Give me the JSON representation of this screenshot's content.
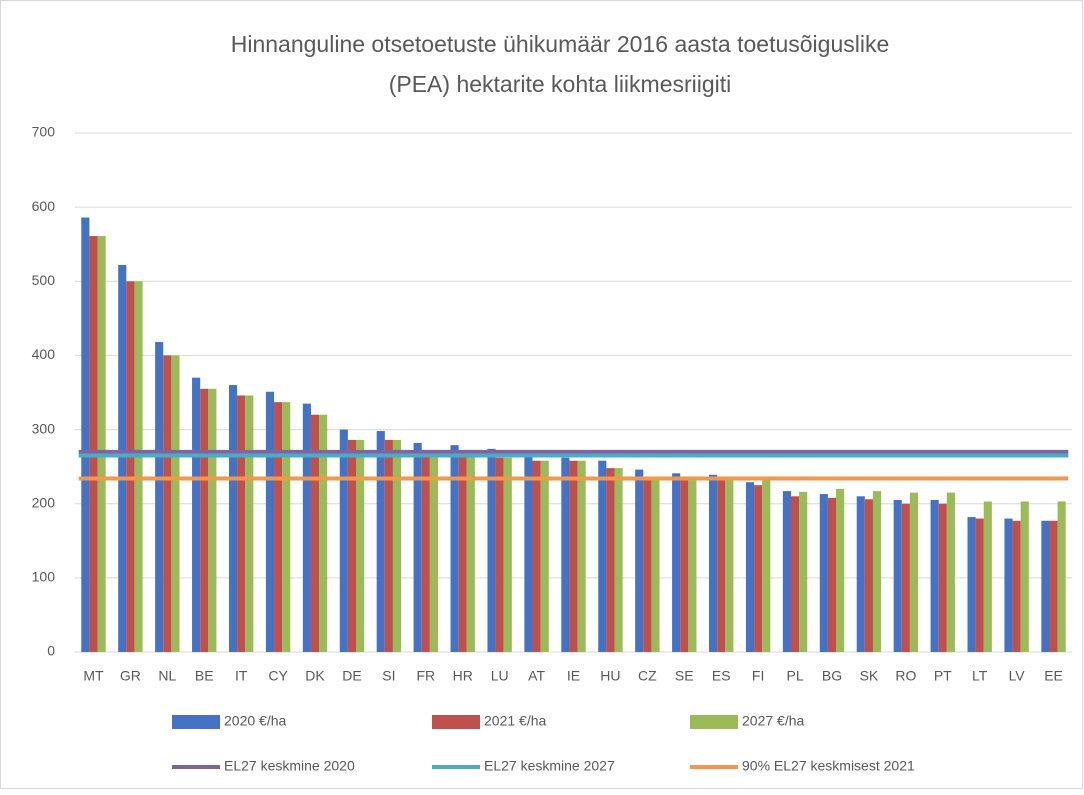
{
  "chart_data": {
    "type": "bar",
    "title": "Hinnanguline otsetoetuste ühikumäär 2016 aasta toetusõiguslike",
    "subtitle": "(PEA) hektarite kohta liikmesriigiti",
    "categories": [
      "MT",
      "GR",
      "NL",
      "BE",
      "IT",
      "CY",
      "DK",
      "DE",
      "SI",
      "FR",
      "HR",
      "LU",
      "AT",
      "IE",
      "HU",
      "CZ",
      "SE",
      "ES",
      "FI",
      "PL",
      "BG",
      "SK",
      "RO",
      "PT",
      "LT",
      "LV",
      "EE"
    ],
    "series": [
      {
        "name": "2020 €/ha",
        "color": "#4472c4",
        "values": [
          586,
          522,
          418,
          370,
          360,
          351,
          335,
          300,
          298,
          282,
          279,
          274,
          266,
          262,
          258,
          246,
          241,
          239,
          229,
          217,
          213,
          210,
          205,
          205,
          182,
          180,
          177
        ]
      },
      {
        "name": "2021 €/ha",
        "color": "#c0504d",
        "values": [
          561,
          500,
          400,
          355,
          346,
          337,
          320,
          286,
          286,
          265,
          265,
          262,
          258,
          258,
          248,
          234,
          234,
          232,
          225,
          210,
          208,
          206,
          200,
          200,
          180,
          177,
          177
        ]
      },
      {
        "name": "2027 €/ha",
        "color": "#9bbb59",
        "values": [
          561,
          500,
          400,
          355,
          346,
          337,
          320,
          286,
          286,
          265,
          265,
          262,
          258,
          258,
          248,
          234,
          234,
          234,
          234,
          216,
          220,
          217,
          215,
          215,
          203,
          203,
          203
        ]
      },
      {
        "name": "EL27 keskmine 2020",
        "color": "#8064a2",
        "type": "line",
        "values": [
          270,
          270,
          270,
          270,
          270,
          270,
          270,
          270,
          270,
          270,
          270,
          270,
          270,
          270,
          270,
          270,
          270,
          270,
          270,
          270,
          270,
          270,
          270,
          270,
          270,
          270,
          270
        ]
      },
      {
        "name": "EL27 keskmine 2027",
        "color": "#4bacc6",
        "type": "line",
        "values": [
          265,
          265,
          265,
          265,
          265,
          265,
          265,
          265,
          265,
          265,
          265,
          265,
          265,
          265,
          265,
          265,
          265,
          265,
          265,
          265,
          265,
          265,
          265,
          265,
          265,
          265,
          265
        ]
      },
      {
        "name": "90% EL27 keskmisest 2021",
        "color": "#f79646",
        "type": "line",
        "values": [
          234,
          234,
          234,
          234,
          234,
          234,
          234,
          234,
          234,
          234,
          234,
          234,
          234,
          234,
          234,
          234,
          234,
          234,
          234,
          234,
          234,
          234,
          234,
          234,
          234,
          234,
          234
        ]
      }
    ],
    "ylim": [
      0,
      700
    ],
    "yticks": [
      0,
      100,
      200,
      300,
      400,
      500,
      600,
      700
    ],
    "grid": true,
    "legend": "bottom"
  }
}
